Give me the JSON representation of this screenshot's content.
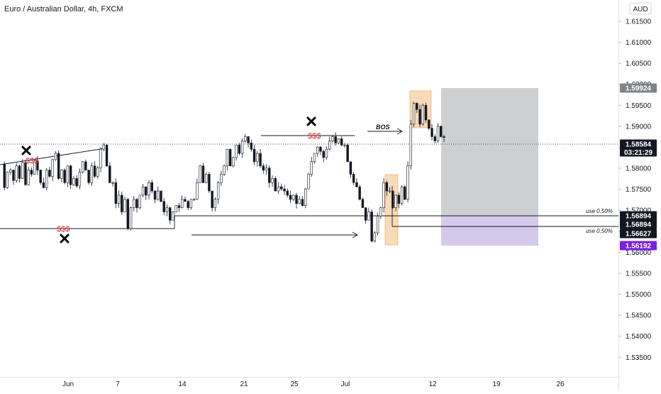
{
  "header": {
    "title": "Euro / Australian Dollar, 4h, FXCM",
    "currency_badge": "AUD"
  },
  "chart_data": {
    "type": "candlestick",
    "title": "Euro / Australian Dollar, 4h, FXCM",
    "currency": "AUD",
    "ylim": [
      1.5295,
      1.6197
    ],
    "y_ticks": [
      "1.61500",
      "1.61000",
      "1.60500",
      "1.60000",
      "1.59500",
      "1.59000",
      "1.58500",
      "1.58000",
      "1.57500",
      "1.57000",
      "1.56500",
      "1.56000",
      "1.55500",
      "1.55000",
      "1.54500",
      "1.54000",
      "1.53500"
    ],
    "x_ticks": [
      "Jun",
      "7",
      "14",
      "21",
      "25",
      "Jul",
      "12",
      "19",
      "26"
    ],
    "price_path": [
      [
        1.5805,
        1.5748,
        1.5785,
        1.579,
        1.5765,
        1.58,
        1.577,
        1.5808,
        1.5755,
        1.579,
        1.578,
        1.5812,
        1.579,
        1.576,
        1.5748,
        1.579,
        1.5775,
        1.5815,
        1.583,
        1.577,
        1.579,
        1.576,
        1.58,
        1.5755,
        1.577,
        1.5752,
        1.5785,
        1.581,
        1.579,
        1.576,
        1.58,
        1.5775,
        1.5795,
        1.584,
        1.585,
        1.58,
        1.576
      ],
      [
        1.576,
        1.571,
        1.573,
        1.569,
        1.572,
        1.565,
        1.57,
        1.572,
        1.57,
        1.573,
        1.575,
        1.573,
        1.576,
        1.574,
        1.572,
        1.574,
        1.5715,
        1.569,
        1.57,
        1.567,
        1.569,
        1.5705,
        1.57,
        1.572,
        1.5715,
        1.57,
        1.572
      ],
      [
        1.572,
        1.576,
        1.58,
        1.576,
        1.578,
        1.574,
        1.57,
        1.572,
        1.576,
        1.578,
        1.58,
        1.584,
        1.58,
        1.582,
        1.585,
        1.583,
        1.586,
        1.587,
        1.5855,
        1.584,
        1.581,
        1.583,
        1.58,
        1.579,
        1.5795,
        1.576,
        1.577,
        1.574,
        1.575,
        1.5745,
        1.574,
        1.573,
        1.572,
        1.573,
        1.571,
        1.572,
        1.5705,
        1.5745,
        1.578,
        1.581,
        1.583,
        1.5845,
        1.5835,
        1.582,
        1.584,
        1.586,
        1.587,
        1.5855,
        1.5865,
        1.585
      ],
      [
        1.585,
        1.581,
        1.578,
        1.576,
        1.575,
        1.572,
        1.57,
        1.567,
        1.569,
        1.562,
        1.564,
        1.568,
        1.57,
        1.576,
        1.574,
        1.574,
        1.57,
        1.573,
        1.571,
        1.575,
        1.572,
        1.58,
        1.59,
        1.595,
        1.5935,
        1.59,
        1.5945,
        1.591,
        1.589,
        1.587,
        1.586,
        1.5895,
        1.587,
        1.5868
      ]
    ],
    "annotations": {
      "bos_label": "BOS",
      "liquidity_label": "$$$",
      "risk_note_upper": "use 0.50%",
      "risk_note_lower": "use 0.50%"
    },
    "price_tags": [
      {
        "value": "1.59924",
        "kind": "target"
      },
      {
        "value": "1.58584",
        "kind": "last",
        "countdown": "03:21:29"
      },
      {
        "value": "1.56894",
        "kind": "level"
      },
      {
        "value": "1.56894",
        "kind": "level"
      },
      {
        "value": "1.56627",
        "kind": "level"
      },
      {
        "value": "1.56192",
        "kind": "stop"
      }
    ],
    "colors": {
      "candle": "#131722",
      "target_zone": "#a5a7ab",
      "stop_zone": "#b39ddb",
      "order_block": "#f5c189",
      "liquidity": "#d32f2f",
      "stop_tag": "#7b1fe0",
      "target_tag": "#808489",
      "last_price_line": "#131722"
    }
  }
}
